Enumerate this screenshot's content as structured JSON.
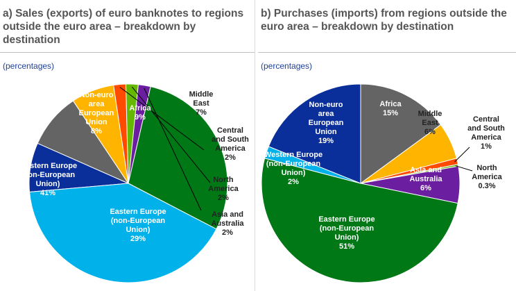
{
  "panels": {
    "a": {
      "title": "a) Sales (exports) of euro banknotes to regions outside the euro area – breakdown by destination",
      "units": "(percentages)"
    },
    "b": {
      "title": "b) Purchases (imports) from regions outside the euro area – breakdown by destination",
      "units": "(percentages)"
    }
  },
  "chart_data": [
    {
      "type": "pie",
      "title": "a) Sales (exports) of euro banknotes to regions outside the euro area – breakdown by destination",
      "units": "(percentages)",
      "slices": [
        {
          "label": "Non-euro area European Union",
          "value": 8,
          "value_label": "8%",
          "color": "#0a2f9a"
        },
        {
          "label": "Africa",
          "value": 9,
          "value_label": "9%",
          "color": "#646464"
        },
        {
          "label": "Middle East",
          "value": 7,
          "value_label": "7%",
          "color": "#ffb400"
        },
        {
          "label": "Central and South America",
          "value": 2,
          "value_label": "2%",
          "color": "#ff4b00"
        },
        {
          "label": "North America",
          "value": 2,
          "value_label": "2%",
          "color": "#65b800"
        },
        {
          "label": "Asia and Australia",
          "value": 2,
          "value_label": "2%",
          "color": "#6b1fa0"
        },
        {
          "label": "Eastern Europe (non-European Union)",
          "value": 29,
          "value_label": "29%",
          "color": "#007816"
        },
        {
          "label": "Western Europe (non-European Union)",
          "value": 41,
          "value_label": "41%",
          "color": "#00b1ea"
        }
      ]
    },
    {
      "type": "pie",
      "title": "b) Purchases (imports) from regions outside the euro area – breakdown by destination",
      "units": "(percentages)",
      "slices": [
        {
          "label": "Africa",
          "value": 15,
          "value_label": "15%",
          "color": "#646464"
        },
        {
          "label": "Middle East",
          "value": 6,
          "value_label": "6%",
          "color": "#ffb400"
        },
        {
          "label": "Central and South America",
          "value": 1,
          "value_label": "1%",
          "color": "#ff4b00"
        },
        {
          "label": "North America",
          "value": 0.3,
          "value_label": "0.3%",
          "color": "#65b800"
        },
        {
          "label": "Asia and Australia",
          "value": 6,
          "value_label": "6%",
          "color": "#6b1fa0"
        },
        {
          "label": "Eastern Europe (non-European Union)",
          "value": 51,
          "value_label": "51%",
          "color": "#007816"
        },
        {
          "label": "Western Europe (non-European Union)",
          "value": 2,
          "value_label": "2%",
          "color": "#00b1ea"
        },
        {
          "label": "Non-euro area European Union",
          "value": 19,
          "value_label": "19%",
          "color": "#0a2f9a"
        }
      ]
    }
  ]
}
